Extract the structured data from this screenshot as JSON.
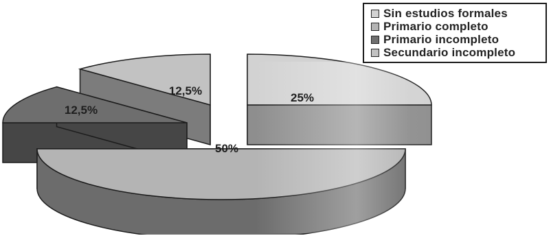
{
  "chart_data": {
    "type": "pie",
    "style": "3d-exploded",
    "title": "",
    "legend_position": "top-right",
    "slices": [
      {
        "label": "Sin estudios formales",
        "value": 25,
        "value_label": "25%",
        "color": "#d2d2d2",
        "side_color": "#8e8e8e"
      },
      {
        "label": "Primario completo",
        "value": 50,
        "value_label": "50%",
        "color": "#b4b4b4",
        "side_color": "#6c6c6c"
      },
      {
        "label": "Primario incompleto",
        "value": 12.5,
        "value_label": "12,5%",
        "color": "#6e6e6e",
        "side_color": "#464646"
      },
      {
        "label": "Secundario incompleto",
        "value": 12.5,
        "value_label": "12,5%",
        "color": "#c2c2c2",
        "side_color": "#7c7c7c"
      }
    ]
  }
}
